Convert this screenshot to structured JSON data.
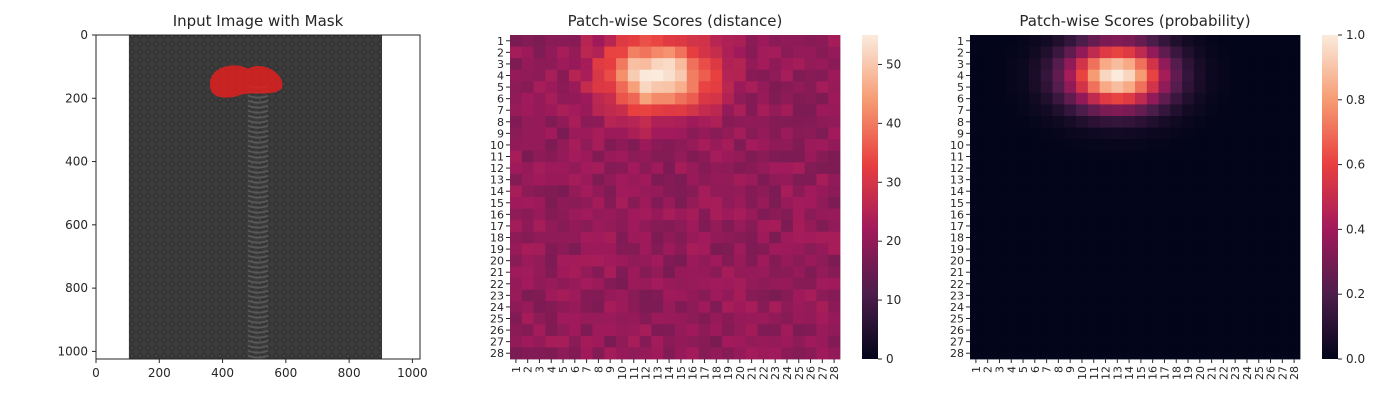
{
  "chart_data": [
    {
      "type": "image",
      "title": "Input Image with Mask",
      "xlim": [
        0,
        1024
      ],
      "ylim": [
        1024,
        0
      ],
      "xticks": [
        0,
        200,
        400,
        600,
        800,
        1000
      ],
      "yticks": [
        0,
        200,
        400,
        600,
        800,
        1000
      ],
      "image_extent": {
        "x": [
          104,
          904
        ],
        "y": [
          0,
          1024
        ]
      },
      "mask_color": "#e02020",
      "mask_region": {
        "center_x": 480,
        "center_y": 145,
        "width": 240,
        "height": 110
      }
    },
    {
      "type": "heatmap",
      "title": "Patch-wise Scores (distance)",
      "rows": 28,
      "cols": 28,
      "x_labels": [
        "1",
        "2",
        "3",
        "4",
        "5",
        "6",
        "7",
        "8",
        "9",
        "10",
        "11",
        "12",
        "13",
        "14",
        "15",
        "16",
        "17",
        "18",
        "19",
        "20",
        "21",
        "22",
        "23",
        "24",
        "25",
        "26",
        "27",
        "28"
      ],
      "y_labels": [
        "1",
        "2",
        "3",
        "4",
        "5",
        "6",
        "7",
        "8",
        "9",
        "10",
        "11",
        "12",
        "13",
        "14",
        "15",
        "16",
        "17",
        "18",
        "19",
        "20",
        "21",
        "22",
        "23",
        "24",
        "25",
        "26",
        "27",
        "28"
      ],
      "colorbar": {
        "min": 0,
        "max": 55,
        "ticks": [
          0,
          10,
          20,
          30,
          40,
          50
        ]
      },
      "colormap": "rocket",
      "base_value": 20,
      "hotspot": {
        "center_row": 4,
        "center_col": 13,
        "row_sigma": 2.2,
        "col_sigma": 3.2,
        "peak": 55
      }
    },
    {
      "type": "heatmap",
      "title": "Patch-wise Scores (probability)",
      "rows": 28,
      "cols": 28,
      "x_labels": [
        "1",
        "2",
        "3",
        "4",
        "5",
        "6",
        "7",
        "8",
        "9",
        "10",
        "11",
        "12",
        "13",
        "14",
        "15",
        "16",
        "17",
        "18",
        "19",
        "20",
        "21",
        "22",
        "23",
        "24",
        "25",
        "26",
        "27",
        "28"
      ],
      "y_labels": [
        "1",
        "2",
        "3",
        "4",
        "5",
        "6",
        "7",
        "8",
        "9",
        "10",
        "11",
        "12",
        "13",
        "14",
        "15",
        "16",
        "17",
        "18",
        "19",
        "20",
        "21",
        "22",
        "23",
        "24",
        "25",
        "26",
        "27",
        "28"
      ],
      "colorbar": {
        "min": 0.0,
        "max": 1.0,
        "ticks": [
          "0.0",
          "0.2",
          "0.4",
          "0.6",
          "0.8",
          "1.0"
        ]
      },
      "colormap": "rocket",
      "base_value": 0.0,
      "hotspot": {
        "center_row": 4,
        "center_col": 13,
        "row_sigma": 2.0,
        "col_sigma": 3.0,
        "peak": 1.0
      }
    }
  ]
}
